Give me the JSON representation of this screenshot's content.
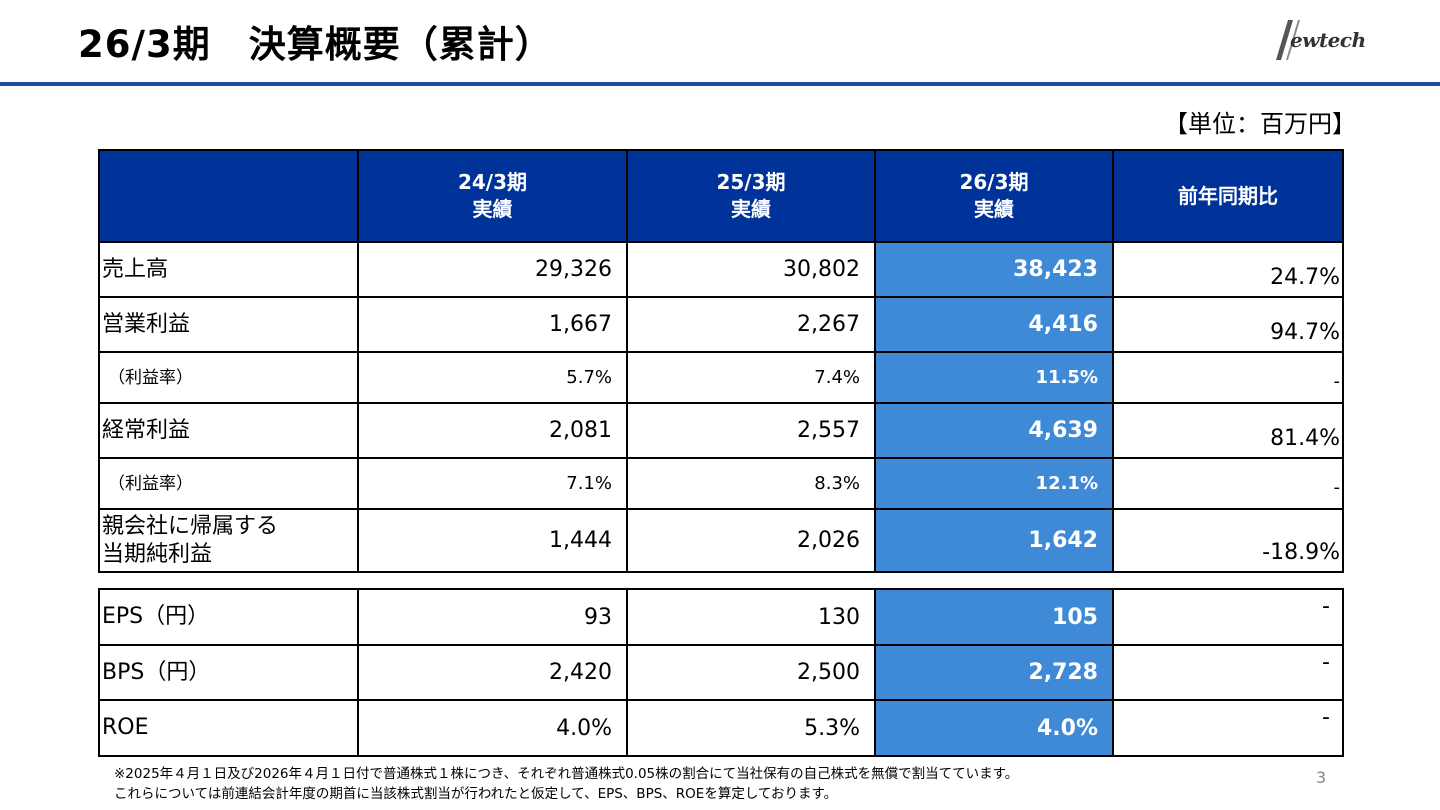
{
  "header": {
    "title": "26/3期　決算概要（累計）",
    "logo_text": "ewtech"
  },
  "unit_label": "【単位：百万円】",
  "main_table": {
    "columns": [
      {
        "line1": "24/3期",
        "line2": "実績"
      },
      {
        "line1": "25/3期",
        "line2": "実績"
      },
      {
        "line1": "26/3期",
        "line2": "実績"
      },
      {
        "line1": "前年同期比",
        "line2": ""
      }
    ],
    "rows": [
      {
        "label": "売上高",
        "v24": "29,326",
        "v25": "30,802",
        "v26": "38,423",
        "yoy": "24.7%"
      },
      {
        "label": "営業利益",
        "v24": "1,667",
        "v25": "2,267",
        "v26": "4,416",
        "yoy": "94.7%"
      },
      {
        "label": "（利益率）",
        "v24": "5.7%",
        "v25": "7.4%",
        "v26": "11.5%",
        "yoy": "-"
      },
      {
        "label": "経常利益",
        "v24": "2,081",
        "v25": "2,557",
        "v26": "4,639",
        "yoy": "81.4%"
      },
      {
        "label": "（利益率）",
        "v24": "7.1%",
        "v25": "8.3%",
        "v26": "12.1%",
        "yoy": "-"
      },
      {
        "label_line1": "親会社に帰属する",
        "label_line2": "当期純利益",
        "v24": "1,444",
        "v25": "2,026",
        "v26": "1,642",
        "yoy": "-18.9%"
      }
    ]
  },
  "sub_table": {
    "rows": [
      {
        "label": "EPS（円）",
        "v24": "93",
        "v25": "130",
        "v26": "105",
        "yoy": "-"
      },
      {
        "label": "BPS（円）",
        "v24": "2,420",
        "v25": "2,500",
        "v26": "2,728",
        "yoy": "-"
      },
      {
        "label": "ROE",
        "v24": "4.0%",
        "v25": "5.3%",
        "v26": "4.0%",
        "yoy": "-"
      }
    ]
  },
  "footnote": {
    "line1": "※2025年４月１日及び2026年４月１日付で普通株式１株につき、それぞれ普通株式0.05株の割合にて当社保有の自己株式を無償で割当てています。",
    "line2": "これらについては前連結会計年度の期首に当該株式割当が行われたと仮定して、EPS、BPS、ROEを算定しております。"
  },
  "page_number": "3",
  "colors": {
    "header_fill": "#003399",
    "highlight_fill": "#3e8ad6",
    "rule": "#1f4e9c"
  }
}
